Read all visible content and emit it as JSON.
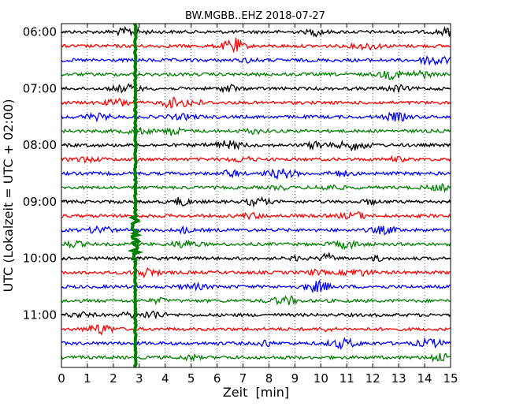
{
  "chart_data": {
    "type": "line",
    "title": "BW.MGBB..EHZ 2018-07-27",
    "xlabel": "Zeit  [min]",
    "ylabel": "UTC (Lokalzeit = UTC + 02:00)",
    "xlim": [
      0,
      15
    ],
    "xticks": [
      "0",
      "1",
      "2",
      "3",
      "4",
      "5",
      "6",
      "7",
      "8",
      "9",
      "10",
      "11",
      "12",
      "13",
      "14",
      "15"
    ],
    "yticks": [
      {
        "label": "06:00",
        "row": 0
      },
      {
        "label": "07:00",
        "row": 4
      },
      {
        "label": "08:00",
        "row": 8
      },
      {
        "label": "09:00",
        "row": 12
      },
      {
        "label": "10:00",
        "row": 16
      },
      {
        "label": "11:00",
        "row": 20
      }
    ],
    "grid": true,
    "row_interval_minutes": 15,
    "row_count": 24,
    "trace_colors": [
      "#000000",
      "#ff0000",
      "#0000ff",
      "#008000"
    ],
    "event_marker": {
      "x_minute": 2.85,
      "color": "#008000"
    }
  }
}
